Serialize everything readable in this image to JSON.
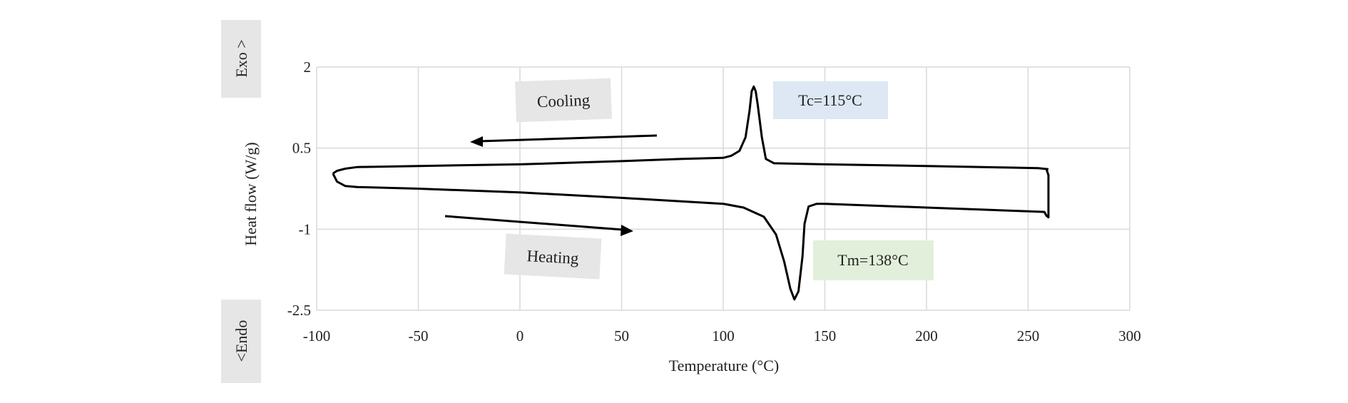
{
  "chart_data": {
    "type": "line",
    "title": "",
    "xlabel": "Temperature (°C)",
    "ylabel": "Heat flow (W/g)",
    "xlim": [
      -100,
      300
    ],
    "ylim": [
      -2.5,
      2
    ],
    "xticks": [
      "-100",
      "-50",
      "0",
      "50",
      "100",
      "150",
      "200",
      "250",
      "300"
    ],
    "xtick_values": [
      -100,
      -50,
      0,
      50,
      100,
      150,
      200,
      250,
      300
    ],
    "yticks": [
      "2",
      "0.5",
      "-1",
      "-2.5"
    ],
    "ytick_values": [
      2,
      0.5,
      -1,
      -2.5
    ],
    "grid": true,
    "side_labels": {
      "exo": "Exo >",
      "endo": "<Endo"
    },
    "series": [
      {
        "name": "Cooling",
        "x": [
          260,
          255,
          240,
          200,
          150,
          125,
          121,
          119,
          117,
          116,
          115,
          114,
          113,
          111,
          108,
          104,
          100,
          80,
          50,
          0,
          -50,
          -80,
          -86,
          -90,
          -92
        ],
        "y": [
          0.11,
          0.13,
          0.14,
          0.17,
          0.2,
          0.22,
          0.3,
          0.7,
          1.3,
          1.55,
          1.64,
          1.55,
          1.2,
          0.7,
          0.45,
          0.36,
          0.32,
          0.3,
          0.26,
          0.2,
          0.17,
          0.15,
          0.12,
          0.08,
          0.03
        ]
      },
      {
        "name": "Heating",
        "x": [
          -92,
          -90,
          -86,
          -80,
          -50,
          0,
          50,
          100,
          110,
          120,
          126,
          130,
          133,
          135,
          137,
          139,
          140,
          142,
          146,
          150,
          200,
          250,
          258,
          259,
          260,
          260,
          259
        ],
        "y": [
          0.03,
          -0.12,
          -0.2,
          -0.22,
          -0.25,
          -0.32,
          -0.42,
          -0.53,
          -0.6,
          -0.77,
          -1.1,
          -1.6,
          -2.1,
          -2.3,
          -2.15,
          -1.5,
          -0.9,
          -0.58,
          -0.53,
          -0.53,
          -0.6,
          -0.67,
          -0.68,
          -0.75,
          -0.78,
          0.0,
          0.11
        ]
      }
    ],
    "annotations": [
      {
        "text": "Cooling",
        "direction": "left"
      },
      {
        "text": "Heating",
        "direction": "right"
      },
      {
        "text": "Tc=115°C",
        "color": "#dde8f4"
      },
      {
        "text": "Tm=138°C",
        "color": "#e2efda"
      }
    ],
    "colors": {
      "line": "#000000",
      "grid": "#d9d9d9",
      "label_box": "#e6e6e6"
    }
  }
}
